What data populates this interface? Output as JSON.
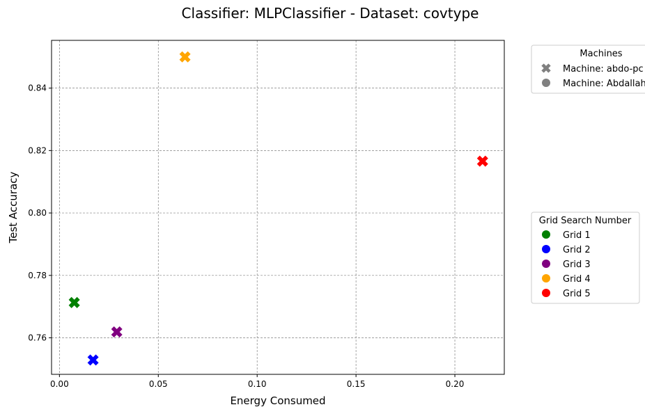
{
  "chart_data": {
    "type": "scatter",
    "title": "Classifier: MLPClassifier - Dataset: covtype",
    "xlabel": "Energy Consumed",
    "ylabel": "Test Accuracy",
    "xlim": [
      -0.004,
      0.225
    ],
    "ylim": [
      0.7483,
      0.8553
    ],
    "xticks": [
      0.0,
      0.05,
      0.1,
      0.15,
      0.2
    ],
    "xtick_labels": [
      "0.00",
      "0.05",
      "0.10",
      "0.15",
      "0.20"
    ],
    "yticks": [
      0.76,
      0.78,
      0.8,
      0.82,
      0.84
    ],
    "ytick_labels": [
      "0.76",
      "0.78",
      "0.80",
      "0.82",
      "0.84"
    ],
    "grid": true,
    "points": [
      {
        "grid": "Grid 1",
        "x": 0.0075,
        "y": 0.7713,
        "color": "#008000",
        "marker": "x"
      },
      {
        "grid": "Grid 2",
        "x": 0.017,
        "y": 0.7529,
        "color": "#0000ff",
        "marker": "x"
      },
      {
        "grid": "Grid 3",
        "x": 0.029,
        "y": 0.7619,
        "color": "#800080",
        "marker": "x"
      },
      {
        "grid": "Grid 4",
        "x": 0.0635,
        "y": 0.85,
        "color": "#ffa500",
        "marker": "x"
      },
      {
        "grid": "Grid 5",
        "x": 0.214,
        "y": 0.8166,
        "color": "#ff0000",
        "marker": "x"
      }
    ],
    "legends": [
      {
        "title": "Machines",
        "placement": "outside-upper-right",
        "entries": [
          {
            "label": "Machine: abdo-pc",
            "marker": "x",
            "color": "#808080"
          },
          {
            "label": "Machine: Abdallah",
            "marker": "o",
            "color": "#808080"
          }
        ]
      },
      {
        "title": "Grid Search Number",
        "placement": "outside-center-right",
        "entries": [
          {
            "label": "Grid 1",
            "marker": "o",
            "color": "#008000"
          },
          {
            "label": "Grid 2",
            "marker": "o",
            "color": "#0000ff"
          },
          {
            "label": "Grid 3",
            "marker": "o",
            "color": "#800080"
          },
          {
            "label": "Grid 4",
            "marker": "o",
            "color": "#ffa500"
          },
          {
            "label": "Grid 5",
            "marker": "o",
            "color": "#ff0000"
          }
        ]
      }
    ]
  }
}
